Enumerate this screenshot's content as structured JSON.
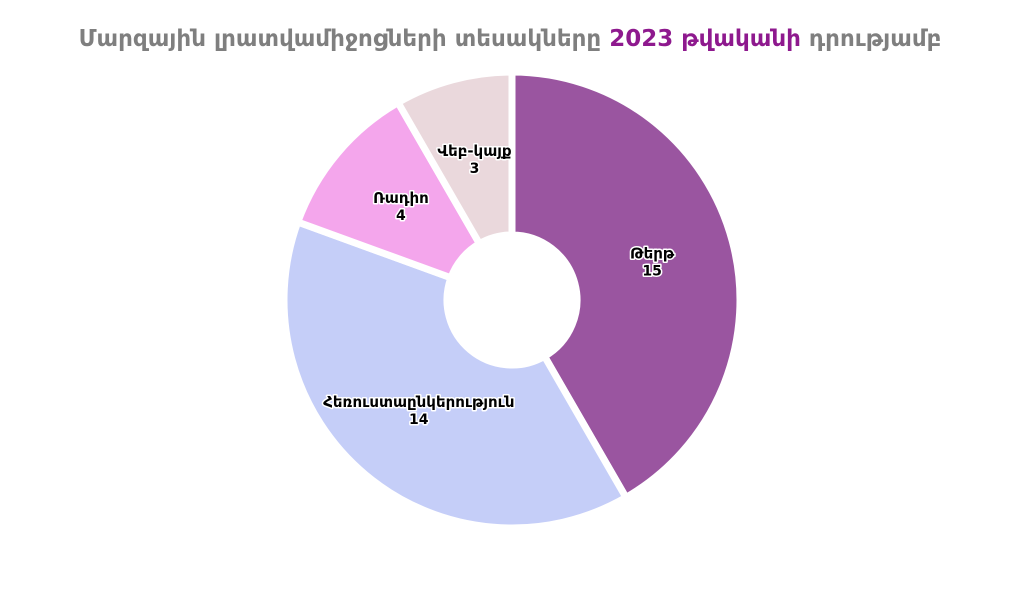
{
  "title": {
    "prefix": "Մարզային լրատվամիջոցների տեսակները",
    "highlight": "2023 թվականի",
    "suffix": "դրությամբ",
    "prefix_color": "#7f7f7f",
    "highlight_color": "#8e198e"
  },
  "chart_data": {
    "type": "pie",
    "subtype": "donut",
    "title": "Մարզային լրատվամիջոցների տեսակները 2023 թվականի դրությամբ",
    "categories": [
      "Թերթ",
      "Հեռուստաընկերություն",
      "Ռադիո",
      "Վեբ-կայք"
    ],
    "values": [
      15,
      14,
      4,
      3
    ],
    "total": 36,
    "colors": [
      "#9a55a0",
      "#c5cef8",
      "#f4a6ec",
      "#ead8dc"
    ],
    "start_angle_deg": 0,
    "direction": "clockwise",
    "inner_radius_ratio": 0.29,
    "labels": "inside, category name above value",
    "legend": "none",
    "background": "#ffffff",
    "wedge_gap_color": "#ffffff"
  }
}
